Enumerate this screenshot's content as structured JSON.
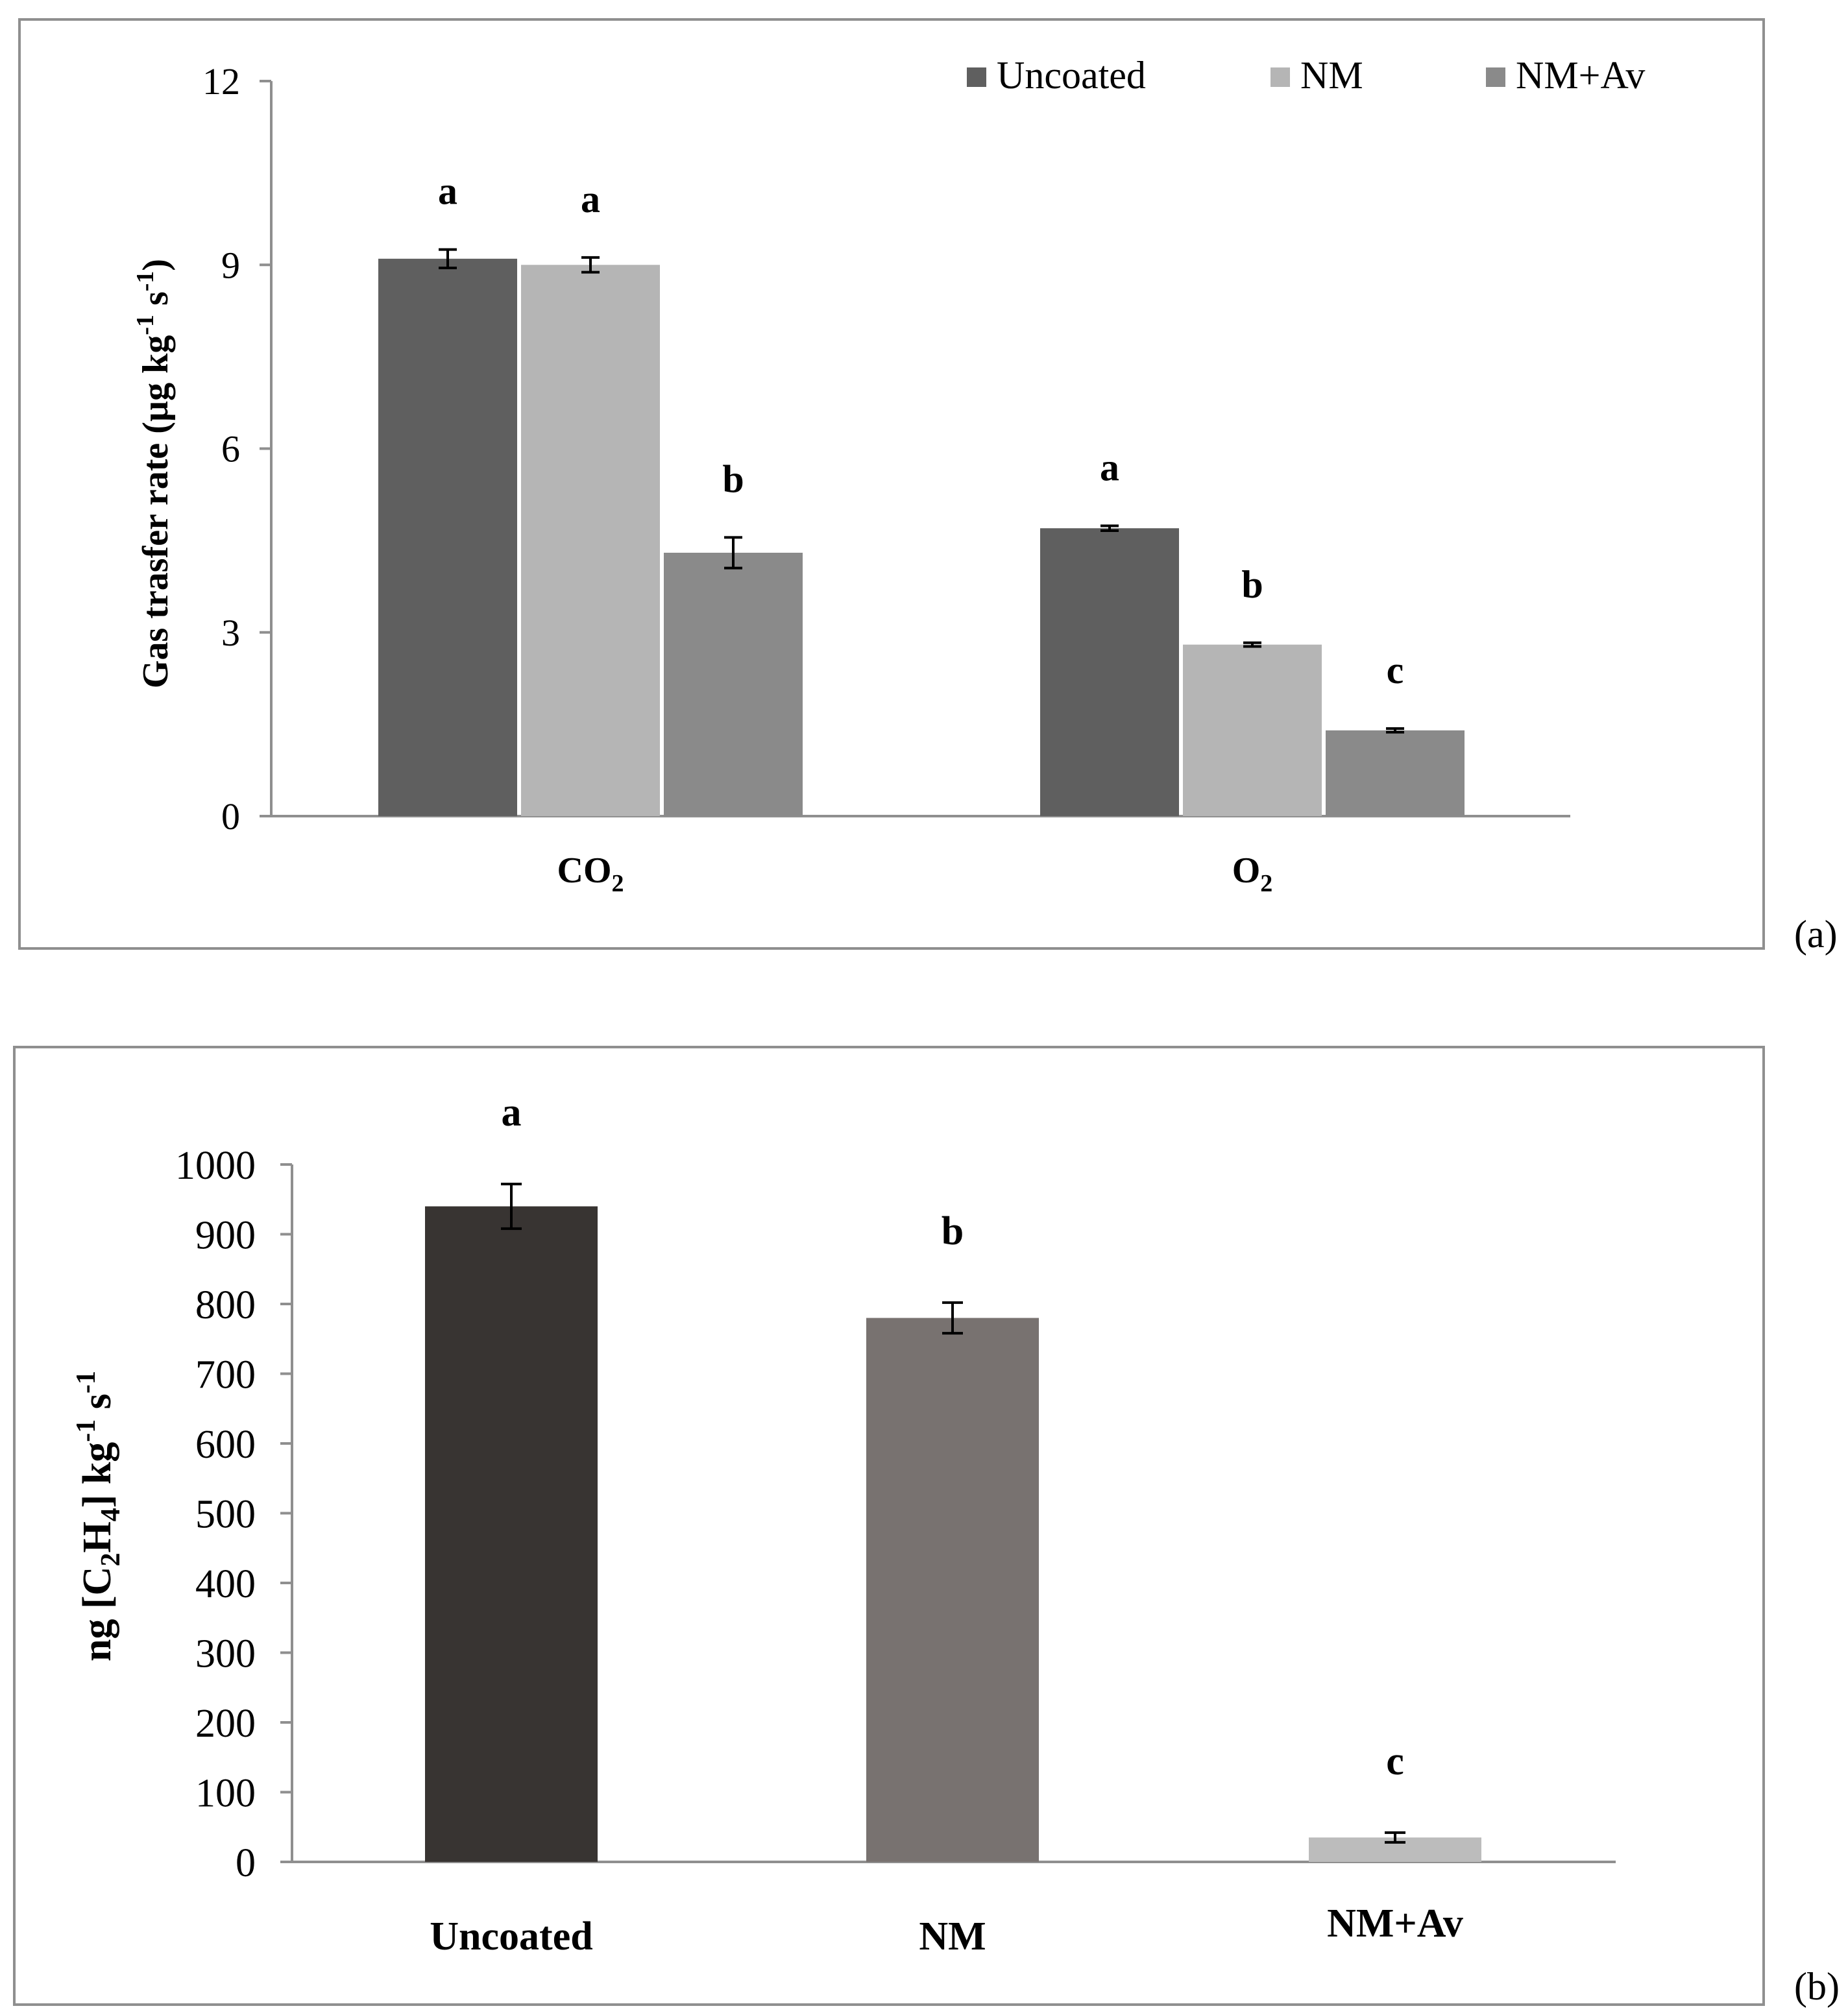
{
  "colors": {
    "uncoated_a": "#5f5f5f",
    "nm_a": "#b5b5b5",
    "nmav_a": "#8a8a8a",
    "uncoated_b": "#383432",
    "nm_b": "#787270",
    "nmav_b": "#bcbcbc",
    "frame": "#8f8f8f",
    "axis": "#8f8f8f",
    "text": "#000000"
  },
  "chart_data": [
    {
      "type": "bar",
      "panel_label": "(a)",
      "title": "",
      "ylabel": "Gas trasfer rate (µg kg-1 s-1)",
      "ylabel_parts": [
        "Gas trasfer rate (µg kg",
        "-1",
        " s",
        "-1",
        ")"
      ],
      "xlabel": "",
      "ylim": [
        0,
        12
      ],
      "yticks": [
        "0",
        "3",
        "6",
        "9",
        "12"
      ],
      "categories": [
        "CO2",
        "O2"
      ],
      "category_parts": [
        [
          "CO",
          "2"
        ],
        [
          "O",
          "2"
        ]
      ],
      "legend": [
        "Uncoated",
        "NM",
        "NM+Av"
      ],
      "legend_position": "top-right",
      "series": [
        {
          "name": "Uncoated",
          "values": [
            9.1,
            4.7
          ],
          "errors": [
            0.15,
            0.04
          ],
          "letters": [
            "a",
            "a"
          ]
        },
        {
          "name": "NM",
          "values": [
            9.0,
            2.8
          ],
          "errors": [
            0.12,
            0.03
          ],
          "letters": [
            "a",
            "b"
          ]
        },
        {
          "name": "NM+Av",
          "values": [
            4.3,
            1.4
          ],
          "errors": [
            0.25,
            0.03
          ],
          "letters": [
            "b",
            "c"
          ]
        }
      ]
    },
    {
      "type": "bar",
      "panel_label": "(b)",
      "title": "",
      "ylabel": "ng [C2H4] kg-1 s-1",
      "ylabel_parts": [
        "ng [C",
        "2",
        "H",
        "4",
        "] kg",
        "-1",
        " s",
        "-1"
      ],
      "xlabel": "",
      "ylim": [
        0,
        1000
      ],
      "yticks": [
        "0",
        "100",
        "200",
        "300",
        "400",
        "500",
        "600",
        "700",
        "800",
        "900",
        "1000"
      ],
      "categories": [
        "Uncoated",
        "NM",
        "NM+Av"
      ],
      "values": [
        940,
        780,
        35
      ],
      "errors": [
        32,
        22,
        7
      ],
      "letters": [
        "a",
        "b",
        "c"
      ]
    }
  ]
}
